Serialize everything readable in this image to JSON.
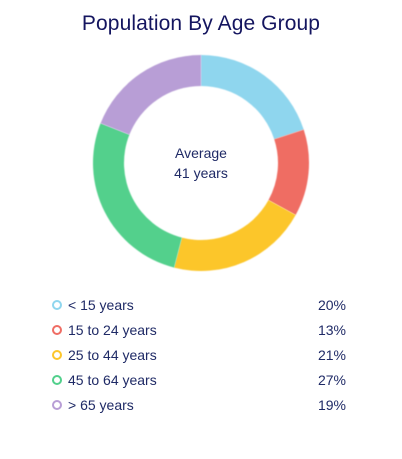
{
  "title": "Population By Age Group",
  "center": {
    "line1": "Average",
    "line2": "41 years"
  },
  "colors": {
    "title": "#14155f",
    "text": "#1f2a66"
  },
  "chart_data": {
    "type": "pie",
    "title": "Population By Age Group",
    "series": [
      {
        "categories": [
          "< 15 years",
          "15 to 24 years",
          "25 to 44 years",
          "45 to 64 years",
          "> 65 years"
        ],
        "values": [
          20,
          13,
          21,
          27,
          19
        ],
        "value_labels": [
          "20%",
          "13%",
          "21%",
          "27%",
          "19%"
        ],
        "colors": [
          "#8fd6ee",
          "#ef6d64",
          "#fcc62b",
          "#52d08c",
          "#b89ed6"
        ]
      }
    ],
    "legend": "bottom"
  }
}
